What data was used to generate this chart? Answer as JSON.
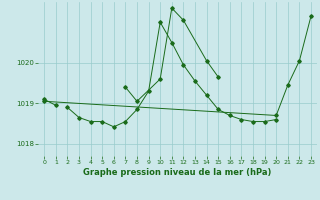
{
  "background_color": "#cce8ea",
  "grid_color": "#99cccc",
  "line_color": "#1a6b1a",
  "title": "Graphe pression niveau de la mer (hPa)",
  "xlim": [
    -0.5,
    23.5
  ],
  "ylim": [
    1017.7,
    1021.5
  ],
  "yticks": [
    1018,
    1019,
    1020
  ],
  "xticks": [
    0,
    1,
    2,
    3,
    4,
    5,
    6,
    7,
    8,
    9,
    10,
    11,
    12,
    13,
    14,
    15,
    16,
    17,
    18,
    19,
    20,
    21,
    22,
    23
  ],
  "line1_x": [
    0,
    1
  ],
  "line1_y": [
    1019.1,
    1018.95
  ],
  "line2_x": [
    2,
    3,
    4,
    5,
    6,
    7,
    8,
    9,
    10,
    11,
    12,
    13,
    14,
    15,
    16,
    17,
    18,
    19,
    20
  ],
  "line2_y": [
    1018.9,
    1018.65,
    1018.55,
    1018.55,
    1018.42,
    1018.55,
    1018.85,
    1019.3,
    1021.0,
    1020.5,
    1019.95,
    1019.55,
    1019.2,
    1018.85,
    1018.7,
    1018.6,
    1018.55,
    1018.55,
    1018.6
  ],
  "line3_x": [
    7,
    8,
    10,
    11,
    12,
    14,
    15
  ],
  "line3_y": [
    1019.4,
    1019.05,
    1019.6,
    1021.35,
    1021.05,
    1020.05,
    1019.65
  ],
  "line4_x": [
    0,
    20,
    21,
    22,
    23
  ],
  "line4_y": [
    1019.05,
    1018.7,
    1019.45,
    1020.05,
    1021.15
  ],
  "lw": 0.7,
  "ms": 1.8,
  "title_fontsize": 6,
  "tick_fontsize": 4.5
}
